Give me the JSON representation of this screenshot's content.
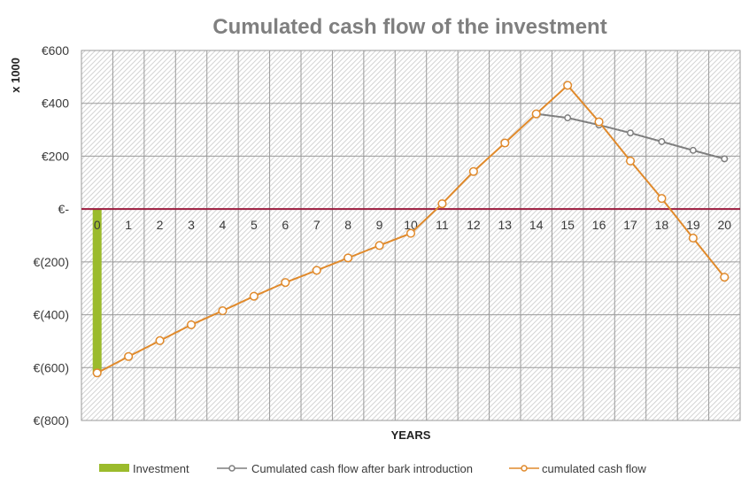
{
  "chart_data": {
    "type": "line",
    "title": "Cumulated cash flow of the investment",
    "xlabel": "YEARS",
    "ylabel": "x 1000",
    "ylim": [
      -800,
      600
    ],
    "yticks": [
      600,
      400,
      200,
      0,
      -200,
      -400,
      -600,
      -800
    ],
    "ytick_labels": [
      "€600",
      "€400",
      "€200",
      "€-",
      "€(200)",
      "€(400)",
      "€(600)",
      "€(800)"
    ],
    "categories": [
      "0",
      "1",
      "2",
      "3",
      "4",
      "5",
      "6",
      "7",
      "8",
      "9",
      "10",
      "11",
      "12",
      "13",
      "14",
      "15",
      "16",
      "17",
      "18",
      "19",
      "20"
    ],
    "grid": true,
    "legend_position": "bottom",
    "series": [
      {
        "name": "Investment",
        "kind": "bar",
        "color": "#9bbb2c",
        "values": [
          -620,
          null,
          null,
          null,
          null,
          null,
          null,
          null,
          null,
          null,
          null,
          null,
          null,
          null,
          null,
          null,
          null,
          null,
          null,
          null,
          null
        ]
      },
      {
        "name": "Cumulated cash flow after bark introduction",
        "kind": "line",
        "color": "#7f7f7f",
        "values": [
          null,
          null,
          null,
          null,
          null,
          null,
          null,
          null,
          null,
          null,
          null,
          null,
          null,
          null,
          360,
          345,
          318,
          288,
          255,
          222,
          190
        ]
      },
      {
        "name": "cumulated cash flow",
        "kind": "line",
        "color": "#e08a2c",
        "values": [
          -620,
          -558,
          -498,
          -438,
          -385,
          -330,
          -278,
          -232,
          -185,
          -138,
          -92,
          20,
          142,
          250,
          360,
          468,
          330,
          182,
          40,
          -110,
          -258
        ]
      }
    ]
  }
}
